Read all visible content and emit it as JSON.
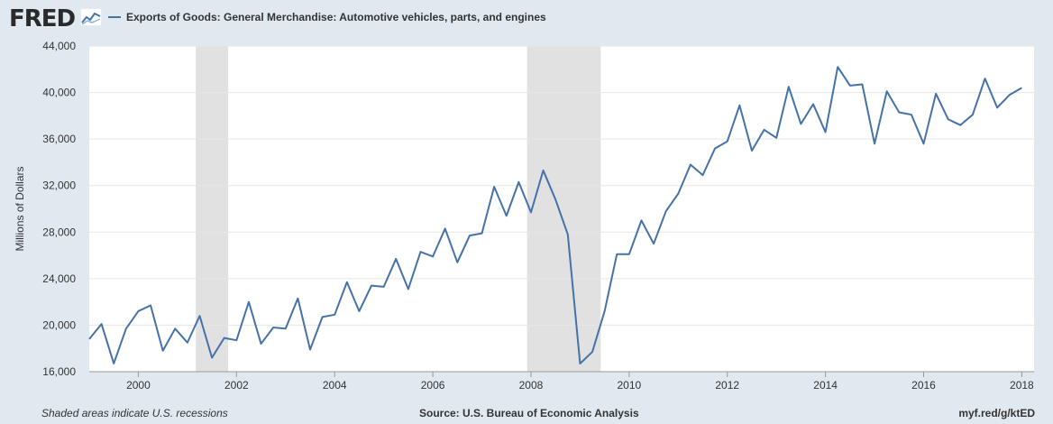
{
  "brand": {
    "name": "FRED"
  },
  "colors": {
    "series": "#4572a7",
    "recession": "#e1e1e1",
    "background": "#e1e9f0",
    "plot": "#ffffff",
    "grid": "#e6e6e6"
  },
  "footer": {
    "note": "Shaded areas indicate U.S. recessions",
    "source": "Source: U.S. Bureau of Economic Analysis",
    "link": "myf.red/g/ktED"
  },
  "chart_data": {
    "type": "line",
    "title": "",
    "xlabel": "",
    "ylabel": "Millions of Dollars",
    "xlim": [
      1999.0,
      2018.25
    ],
    "ylim": [
      16000,
      44000
    ],
    "x_ticks": [
      "2000",
      "2002",
      "2004",
      "2006",
      "2008",
      "2010",
      "2012",
      "2014",
      "2016",
      "2018"
    ],
    "y_ticks": [
      "16,000",
      "20,000",
      "24,000",
      "28,000",
      "32,000",
      "36,000",
      "40,000",
      "44,000"
    ],
    "grid": true,
    "legend": "top-left",
    "recessions": [
      [
        2001.17,
        2001.83
      ],
      [
        2007.92,
        2009.42
      ]
    ],
    "series": [
      {
        "name": "Exports of Goods: General Merchandise: Automotive vehicles, parts, and engines",
        "x": [
          1999.0,
          1999.25,
          1999.5,
          1999.75,
          2000.0,
          2000.25,
          2000.5,
          2000.75,
          2001.0,
          2001.25,
          2001.5,
          2001.75,
          2002.0,
          2002.25,
          2002.5,
          2002.75,
          2003.0,
          2003.25,
          2003.5,
          2003.75,
          2004.0,
          2004.25,
          2004.5,
          2004.75,
          2005.0,
          2005.25,
          2005.5,
          2005.75,
          2006.0,
          2006.25,
          2006.5,
          2006.75,
          2007.0,
          2007.25,
          2007.5,
          2007.75,
          2008.0,
          2008.25,
          2008.5,
          2008.75,
          2009.0,
          2009.25,
          2009.5,
          2009.75,
          2010.0,
          2010.25,
          2010.5,
          2010.75,
          2011.0,
          2011.25,
          2011.5,
          2011.75,
          2012.0,
          2012.25,
          2012.5,
          2012.75,
          2013.0,
          2013.25,
          2013.5,
          2013.75,
          2014.0,
          2014.25,
          2014.5,
          2014.75,
          2015.0,
          2015.25,
          2015.5,
          2015.75,
          2016.0,
          2016.25,
          2016.5,
          2016.75,
          2017.0,
          2017.25,
          2017.5,
          2017.75,
          2018.0
        ],
        "values": [
          18800,
          20100,
          16700,
          19700,
          21200,
          21700,
          17800,
          19700,
          18500,
          20800,
          17200,
          18900,
          18700,
          22000,
          18400,
          19800,
          19700,
          22300,
          17900,
          20700,
          20900,
          23700,
          21200,
          23400,
          23300,
          25700,
          23100,
          26300,
          25900,
          28300,
          25400,
          27700,
          27900,
          31900,
          29400,
          32300,
          29700,
          33300,
          30800,
          27800,
          16700,
          17700,
          21200,
          26100,
          26100,
          29000,
          27000,
          29800,
          31300,
          33800,
          32900,
          35200,
          35800,
          38900,
          35000,
          36800,
          36100,
          40500,
          37300,
          39000,
          36600,
          42200,
          40600,
          40700,
          35600,
          40100,
          38300,
          38100,
          35600,
          39900,
          37700,
          37200,
          38100,
          41200,
          38700,
          39800,
          40400
        ]
      }
    ]
  }
}
